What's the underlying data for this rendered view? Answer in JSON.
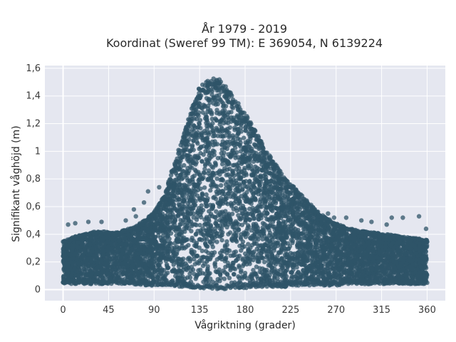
{
  "chart_data": {
    "type": "scatter",
    "title": "År 1979 - 2019",
    "subtitle": "Koordinat (Sweref 99 TM): E 369054, N 6139224",
    "xlabel": "Vågriktning (grader)",
    "ylabel": "Signifikant våghöjd (m)",
    "xlim": [
      -18,
      378
    ],
    "ylim": [
      -0.08,
      1.62
    ],
    "xticks": [
      0,
      45,
      90,
      135,
      180,
      225,
      270,
      315,
      360
    ],
    "xtick_labels": [
      "0",
      "45",
      "90",
      "135",
      "180",
      "225",
      "270",
      "315",
      "360"
    ],
    "yticks": [
      0,
      0.2,
      0.4,
      0.6,
      0.8,
      1.0,
      1.2,
      1.4,
      1.6
    ],
    "ytick_labels": [
      "0",
      "0,2",
      "0,4",
      "0,6",
      "0,8",
      "1",
      "1,2",
      "1,4",
      "1,6"
    ],
    "grid": true,
    "plot_background": "#e5e7f0",
    "marker_color": "#2f5468",
    "marker_opacity": 0.75,
    "envelope": {
      "description_x": "wave direction (degrees)",
      "x": [
        0,
        10,
        20,
        30,
        40,
        50,
        60,
        70,
        80,
        90,
        100,
        110,
        120,
        130,
        135,
        140,
        150,
        155,
        160,
        170,
        180,
        190,
        200,
        210,
        220,
        230,
        240,
        250,
        260,
        270,
        280,
        290,
        300,
        310,
        320,
        330,
        340,
        350,
        360
      ],
      "y_max": [
        0.35,
        0.38,
        0.4,
        0.42,
        0.42,
        0.41,
        0.43,
        0.45,
        0.5,
        0.56,
        0.68,
        0.92,
        1.14,
        1.38,
        1.47,
        1.5,
        1.53,
        1.55,
        1.48,
        1.38,
        1.28,
        1.15,
        1.02,
        0.91,
        0.8,
        0.73,
        0.65,
        0.58,
        0.52,
        0.48,
        0.45,
        0.43,
        0.42,
        0.41,
        0.4,
        0.39,
        0.38,
        0.37,
        0.36
      ],
      "y_min": [
        0.04,
        0.04,
        0.04,
        0.04,
        0.04,
        0.04,
        0.04,
        0.04,
        0.03,
        0.03,
        0.03,
        0.02,
        0.02,
        0.01,
        0.01,
        0.01,
        0.0,
        0.0,
        0.0,
        0.01,
        0.01,
        0.02,
        0.02,
        0.02,
        0.02,
        0.03,
        0.03,
        0.03,
        0.03,
        0.03,
        0.04,
        0.04,
        0.04,
        0.04,
        0.04,
        0.04,
        0.04,
        0.04,
        0.04
      ]
    },
    "outliers": [
      {
        "x": 5,
        "y": 0.47
      },
      {
        "x": 12,
        "y": 0.48
      },
      {
        "x": 25,
        "y": 0.49
      },
      {
        "x": 38,
        "y": 0.49
      },
      {
        "x": 62,
        "y": 0.5
      },
      {
        "x": 72,
        "y": 0.53
      },
      {
        "x": 70,
        "y": 0.58
      },
      {
        "x": 80,
        "y": 0.63
      },
      {
        "x": 84,
        "y": 0.71
      },
      {
        "x": 95,
        "y": 0.74
      },
      {
        "x": 262,
        "y": 0.55
      },
      {
        "x": 268,
        "y": 0.52
      },
      {
        "x": 280,
        "y": 0.52
      },
      {
        "x": 295,
        "y": 0.5
      },
      {
        "x": 305,
        "y": 0.49
      },
      {
        "x": 320,
        "y": 0.47
      },
      {
        "x": 325,
        "y": 0.52
      },
      {
        "x": 336,
        "y": 0.52
      },
      {
        "x": 352,
        "y": 0.53
      },
      {
        "x": 359,
        "y": 0.44
      }
    ]
  }
}
